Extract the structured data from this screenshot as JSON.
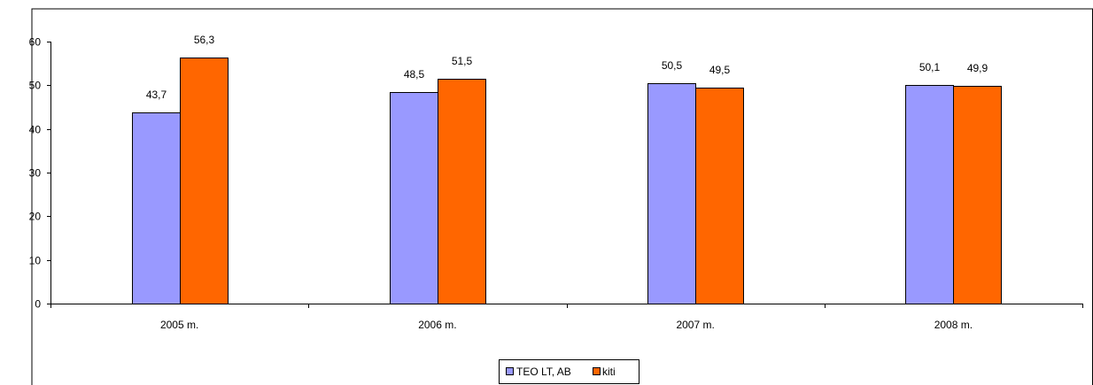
{
  "chart_data": {
    "type": "bar",
    "title": "",
    "xlabel": "",
    "ylabel": "",
    "categories": [
      "2005 m.",
      "2006 m.",
      "2007 m.",
      "2008 m."
    ],
    "series": [
      {
        "name": "TEO LT, AB",
        "color": "#9999ff",
        "values": [
          43.7,
          48.5,
          50.5,
          50.1
        ],
        "labels": [
          "43,7",
          "48,5",
          "50,5",
          "50,1"
        ]
      },
      {
        "name": "kiti",
        "color": "#ff6600",
        "values": [
          56.3,
          51.5,
          49.5,
          49.9
        ],
        "labels": [
          "56,3",
          "51,5",
          "49,5",
          "49,9"
        ]
      }
    ],
    "ylim": [
      0,
      60
    ],
    "yticks": [
      0,
      10,
      20,
      30,
      40,
      50,
      60
    ],
    "grid": false,
    "legend_position": "bottom"
  }
}
